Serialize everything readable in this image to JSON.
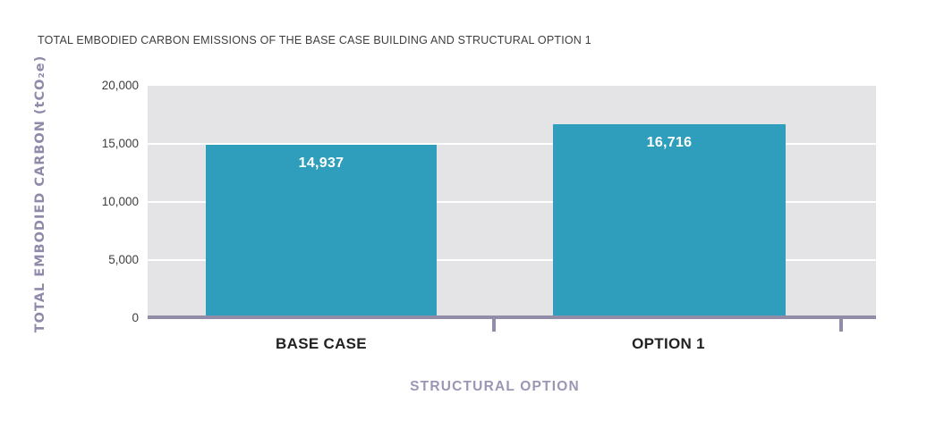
{
  "chart_data": {
    "type": "bar",
    "title": "TOTAL EMBODIED CARBON EMISSIONS OF THE BASE CASE BUILDING AND STRUCTURAL OPTION 1",
    "categories": [
      "BASE CASE",
      "OPTION 1"
    ],
    "values": [
      14937,
      16716
    ],
    "value_labels": [
      "14,937",
      "16,716"
    ],
    "xlabel": "STRUCTURAL OPTION",
    "ylabel": "TOTAL EMBODIED CARBON (tCO₂e)",
    "ylim": [
      0,
      20000
    ],
    "yticks": [
      0,
      5000,
      10000,
      15000,
      20000
    ],
    "ytick_labels": [
      "20,000",
      "15,000",
      "10,000",
      "5,000",
      "0"
    ],
    "grid": true,
    "legend": false,
    "colors": {
      "bar_fill": "#2e9ebc",
      "plot_background": "#e4e4e7",
      "gridline": "#ffffff",
      "axis_line": "#918ca7",
      "title_text": "#3e3e3e",
      "tick_text": "#3e3e3e",
      "category_text": "#222222",
      "axis_title_text": "#8f8aa9",
      "x_axis_title_text": "#9b96b6",
      "bar_value_text": "#ffffff"
    }
  }
}
